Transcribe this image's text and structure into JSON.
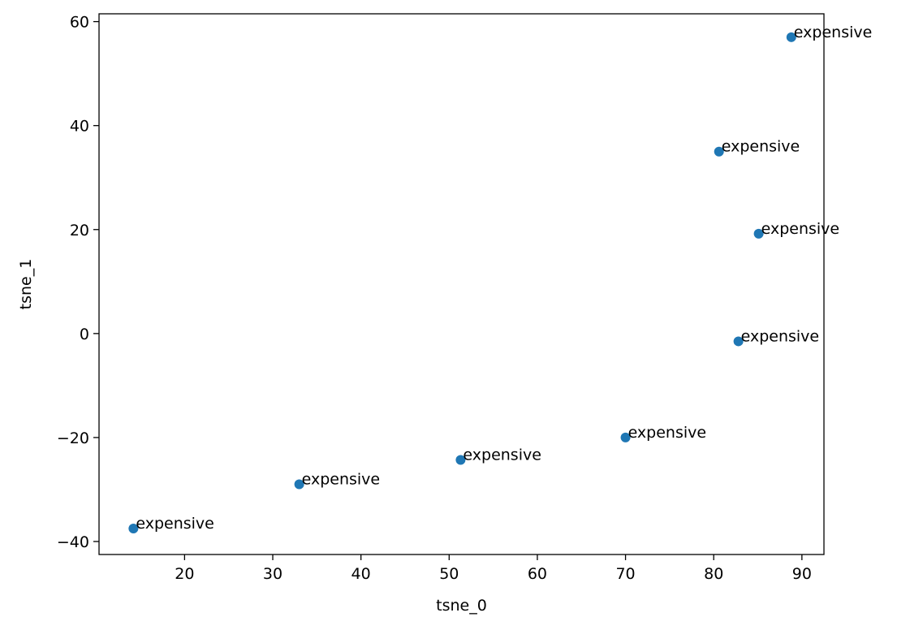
{
  "chart_data": {
    "type": "scatter",
    "title": "",
    "xlabel": "tsne_0",
    "ylabel": "tsne_1",
    "xlim": [
      10.3,
      92.5
    ],
    "ylim": [
      -42.5,
      61.5
    ],
    "xticks": [
      20,
      30,
      40,
      50,
      60,
      70,
      80,
      90
    ],
    "yticks": [
      -40,
      -20,
      0,
      20,
      40,
      60
    ],
    "xtick_labels": [
      "20",
      "30",
      "40",
      "50",
      "60",
      "70",
      "80",
      "90"
    ],
    "ytick_labels": [
      "−40",
      "−20",
      "0",
      "20",
      "40",
      "60"
    ],
    "grid": false,
    "marker_color": "#1f77b4",
    "points": [
      {
        "x": 14.2,
        "y": -37.5,
        "label": "expensive"
      },
      {
        "x": 33.0,
        "y": -29.0,
        "label": "expensive"
      },
      {
        "x": 51.3,
        "y": -24.3,
        "label": "expensive"
      },
      {
        "x": 70.0,
        "y": -20.0,
        "label": "expensive"
      },
      {
        "x": 82.8,
        "y": -1.5,
        "label": "expensive"
      },
      {
        "x": 85.1,
        "y": 19.2,
        "label": "expensive"
      },
      {
        "x": 80.6,
        "y": 35.0,
        "label": "expensive"
      },
      {
        "x": 88.8,
        "y": 57.0,
        "label": "expensive"
      }
    ]
  }
}
